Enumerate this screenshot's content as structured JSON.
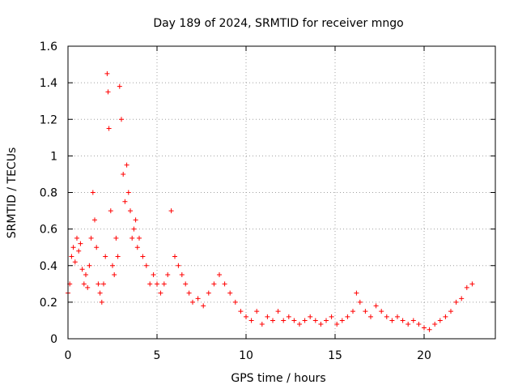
{
  "chart_data": {
    "type": "scatter",
    "title": "Day 189 of 2024, SRMTID for receiver mngo",
    "xlabel": "GPS time / hours",
    "ylabel": "SRMTID / TECUs",
    "xlim": [
      0,
      24
    ],
    "ylim": [
      0,
      1.6
    ],
    "xticks": [
      0,
      5,
      10,
      15,
      20
    ],
    "xtick_labels": [
      "0",
      "5",
      "10",
      "15",
      "20"
    ],
    "yticks": [
      0,
      0.2,
      0.4,
      0.6,
      0.8,
      1.0,
      1.2,
      1.4,
      1.6
    ],
    "ytick_labels": [
      "0",
      "0.2",
      "0.4",
      "0.6",
      "0.8",
      "1",
      "1.2",
      "1.4",
      "1.6"
    ],
    "grid": true,
    "marker": "+",
    "color": "#ff0000",
    "series": [
      {
        "name": "SRMTID",
        "x": [
          0.0,
          0.1,
          0.2,
          0.3,
          0.4,
          0.5,
          0.6,
          0.7,
          0.8,
          0.9,
          1.0,
          1.1,
          1.2,
          1.3,
          1.4,
          1.5,
          1.6,
          1.7,
          1.8,
          1.9,
          2.0,
          2.1,
          2.2,
          2.25,
          2.3,
          2.4,
          2.5,
          2.6,
          2.7,
          2.8,
          2.9,
          3.0,
          3.1,
          3.2,
          3.3,
          3.4,
          3.5,
          3.6,
          3.7,
          3.8,
          3.9,
          4.0,
          4.2,
          4.4,
          4.6,
          4.8,
          5.0,
          5.2,
          5.4,
          5.6,
          5.8,
          6.0,
          6.2,
          6.4,
          6.6,
          6.8,
          7.0,
          7.3,
          7.6,
          7.9,
          8.2,
          8.5,
          8.8,
          9.1,
          9.4,
          9.7,
          10.0,
          10.3,
          10.6,
          10.9,
          11.2,
          11.5,
          11.8,
          12.1,
          12.4,
          12.7,
          13.0,
          13.3,
          13.6,
          13.9,
          14.2,
          14.5,
          14.8,
          15.1,
          15.4,
          15.7,
          16.0,
          16.2,
          16.4,
          16.7,
          17.0,
          17.3,
          17.6,
          17.9,
          18.2,
          18.5,
          18.8,
          19.1,
          19.4,
          19.7,
          20.0,
          20.3,
          20.6,
          20.9,
          21.2,
          21.5,
          21.8,
          22.1,
          22.4,
          22.7
        ],
        "y": [
          0.25,
          0.3,
          0.45,
          0.5,
          0.42,
          0.55,
          0.48,
          0.52,
          0.38,
          0.3,
          0.35,
          0.28,
          0.4,
          0.55,
          0.8,
          0.65,
          0.5,
          0.3,
          0.25,
          0.2,
          0.3,
          0.45,
          1.45,
          1.35,
          1.15,
          0.7,
          0.4,
          0.35,
          0.55,
          0.45,
          1.38,
          1.2,
          0.9,
          0.75,
          0.95,
          0.8,
          0.7,
          0.55,
          0.6,
          0.65,
          0.5,
          0.55,
          0.45,
          0.4,
          0.3,
          0.35,
          0.3,
          0.25,
          0.3,
          0.35,
          0.7,
          0.45,
          0.4,
          0.35,
          0.3,
          0.25,
          0.2,
          0.22,
          0.18,
          0.25,
          0.3,
          0.35,
          0.3,
          0.25,
          0.2,
          0.15,
          0.12,
          0.1,
          0.15,
          0.08,
          0.12,
          0.1,
          0.15,
          0.1,
          0.12,
          0.1,
          0.08,
          0.1,
          0.12,
          0.1,
          0.08,
          0.1,
          0.12,
          0.08,
          0.1,
          0.12,
          0.15,
          0.25,
          0.2,
          0.15,
          0.12,
          0.18,
          0.15,
          0.12,
          0.1,
          0.12,
          0.1,
          0.08,
          0.1,
          0.08,
          0.06,
          0.05,
          0.08,
          0.1,
          0.12,
          0.15,
          0.2,
          0.22,
          0.28,
          0.3
        ]
      }
    ]
  }
}
